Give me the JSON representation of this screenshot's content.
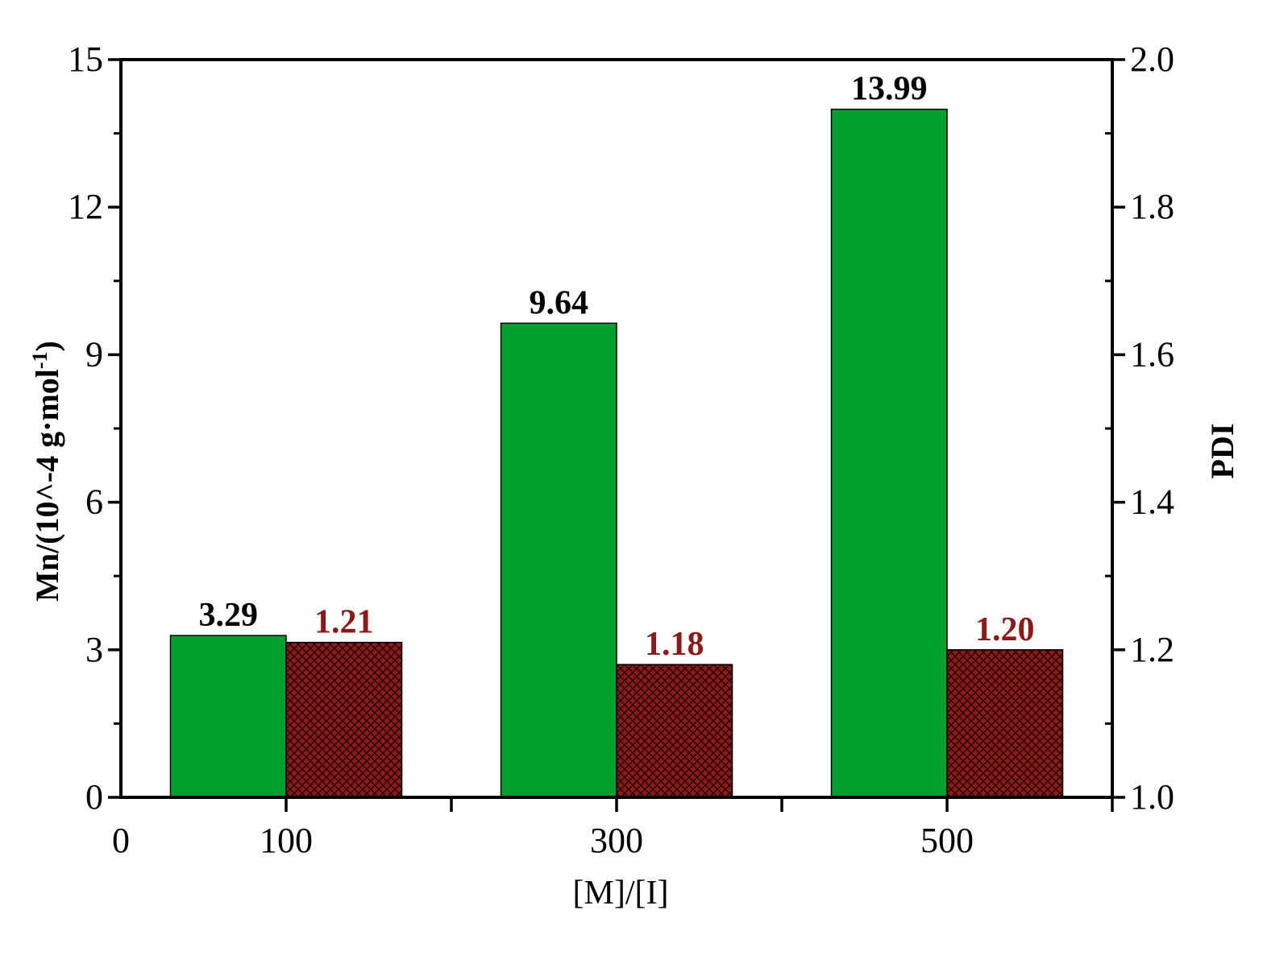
{
  "chart_data": {
    "type": "bar",
    "xlabel": "[M]/[I]",
    "ylabel_left": "Mn/(10^-4 g·mol",
    "ylabel_left_sup": "-1",
    "ylabel_left_close": ")",
    "ylabel_right": "PDI",
    "categories": [
      "100",
      "300",
      "500"
    ],
    "x_ticks": [
      "0",
      "100",
      "300",
      "500"
    ],
    "left_ticks": [
      "0",
      "3",
      "6",
      "9",
      "12",
      "15"
    ],
    "right_ticks": [
      "1.0",
      "1.2",
      "1.4",
      "1.6",
      "1.8",
      "2.0"
    ],
    "ylim_left": [
      0,
      15
    ],
    "ylim_right": [
      1.0,
      2.0
    ],
    "series": [
      {
        "axis": "left",
        "values": [
          3.29,
          9.64,
          13.99
        ],
        "labels": [
          "3.29",
          "9.64",
          "13.99"
        ],
        "color": "#00a02e",
        "pattern": "solid"
      },
      {
        "axis": "right",
        "values": [
          1.21,
          1.18,
          1.2
        ],
        "labels": [
          "1.21",
          "1.18",
          "1.20"
        ],
        "color": "#8b1a1a",
        "pattern": "crosshatch"
      }
    ],
    "grid": false,
    "legend": "none"
  }
}
